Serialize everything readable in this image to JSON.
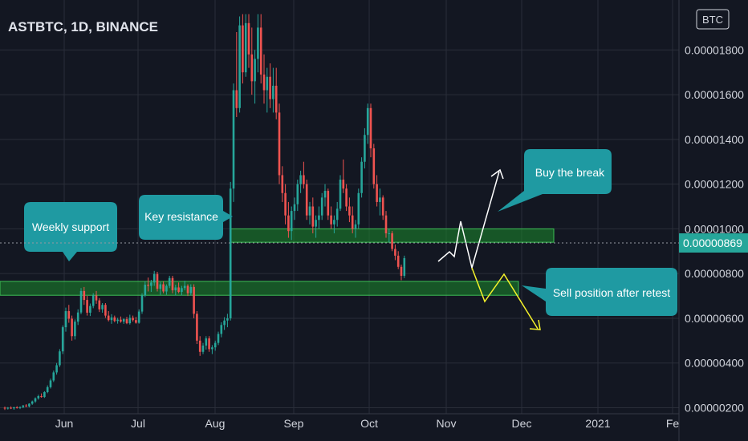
{
  "chart_data": {
    "type": "candlestick",
    "title": "ASTBTC, 1D, BINANCE",
    "currency_badge": "BTC",
    "y_ticks": [
      "0.00000200",
      "0.00000400",
      "0.00000600",
      "0.00000800",
      "0.00001000",
      "0.00001200",
      "0.00001400",
      "0.00001600",
      "0.00001800"
    ],
    "x_ticks": [
      "Jun",
      "Jul",
      "Aug",
      "Sep",
      "Oct",
      "Nov",
      "Dec",
      "2021",
      "Fe"
    ],
    "last_price": "0.00000869",
    "ylim": [
      1.6e-06,
      1.94e-05
    ],
    "grid": true,
    "colors": {
      "up": "#26a69a",
      "down": "#ef5350",
      "zone": "#1b8a2c",
      "callout": "#1f9aa2",
      "scenario_up": "#ffffff",
      "scenario_down": "#f5f22a"
    },
    "zones": [
      {
        "name": "weekly-support-zone",
        "y_low": 7.03e-06,
        "y_high": 7.65e-06
      },
      {
        "name": "key-resistance-zone",
        "y_low": 9.4e-06,
        "y_high": 1e-05
      }
    ],
    "callouts": [
      {
        "name": "weekly-support-callout",
        "text": "Weekly support"
      },
      {
        "name": "key-resistance-callout",
        "text": "Key resistance"
      },
      {
        "name": "buy-break-callout",
        "text": "Buy the break"
      },
      {
        "name": "sell-retest-callout",
        "text": "Sell position after retest"
      }
    ],
    "candles": [
      [
        2e-06,
        2.05e-06,
        1.9e-06,
        1.98e-06
      ],
      [
        1.98e-06,
        2.03e-06,
        1.92e-06,
        2e-06
      ],
      [
        2e-06,
        2.06e-06,
        1.94e-06,
        1.97e-06
      ],
      [
        1.97e-06,
        2.04e-06,
        1.91e-06,
        2.02e-06
      ],
      [
        2.02e-06,
        2.07e-06,
        1.96e-06,
        1.99e-06
      ],
      [
        1.99e-06,
        2.06e-06,
        1.94e-06,
        2.03e-06
      ],
      [
        2.03e-06,
        2.12e-06,
        1.98e-06,
        2.1e-06
      ],
      [
        2.1e-06,
        2.16e-06,
        2.03e-06,
        2.06e-06
      ],
      [
        2.06e-06,
        2.2e-06,
        2.02e-06,
        2.18e-06
      ],
      [
        2.18e-06,
        2.32e-06,
        2.13e-06,
        2.28e-06
      ],
      [
        2.28e-06,
        2.46e-06,
        2.22e-06,
        2.42e-06
      ],
      [
        2.42e-06,
        2.58e-06,
        2.36e-06,
        2.52e-06
      ],
      [
        2.52e-06,
        2.64e-06,
        2.45e-06,
        2.48e-06
      ],
      [
        2.48e-06,
        2.74e-06,
        2.44e-06,
        2.7e-06
      ],
      [
        2.7e-06,
        3e-06,
        2.65e-06,
        2.92e-06
      ],
      [
        2.92e-06,
        3.3e-06,
        2.86e-06,
        3.22e-06
      ],
      [
        3.22e-06,
        3.66e-06,
        3.15e-06,
        3.58e-06
      ],
      [
        3.58e-06,
        4e-06,
        3.48e-06,
        3.9e-06
      ],
      [
        3.9e-06,
        4.62e-06,
        3.82e-06,
        4.52e-06
      ],
      [
        4.52e-06,
        5.68e-06,
        4.4e-06,
        5.6e-06
      ],
      [
        5.6e-06,
        6.48e-06,
        5.4e-06,
        6.32e-06
      ],
      [
        6.32e-06,
        6.6e-06,
        5.8e-06,
        5.98e-06
      ],
      [
        5.98e-06,
        6.12e-06,
        5e-06,
        5.2e-06
      ],
      [
        5.2e-06,
        5.95e-06,
        5.05e-06,
        5.85e-06
      ],
      [
        5.85e-06,
        6.4e-06,
        5.7e-06,
        6.26e-06
      ],
      [
        6.26e-06,
        7.35e-06,
        6.18e-06,
        7.22e-06
      ],
      [
        7.22e-06,
        7.4e-06,
        6.6e-06,
        6.82e-06
      ],
      [
        6.82e-06,
        7e-06,
        6.12e-06,
        6.25e-06
      ],
      [
        6.25e-06,
        6.66e-06,
        6.1e-06,
        6.55e-06
      ],
      [
        6.55e-06,
        7.12e-06,
        6.45e-06,
        7.02e-06
      ],
      [
        7.02e-06,
        7.22e-06,
        6.65e-06,
        6.8e-06
      ],
      [
        6.8e-06,
        6.9e-06,
        6.28e-06,
        6.4e-06
      ],
      [
        6.4e-06,
        6.68e-06,
        6.25e-06,
        6.6e-06
      ],
      [
        6.6e-06,
        6.68e-06,
        6.02e-06,
        6.12e-06
      ],
      [
        6.12e-06,
        6.32e-06,
        5.86e-06,
        5.92e-06
      ],
      [
        5.92e-06,
        6.18e-06,
        5.75e-06,
        6.04e-06
      ],
      [
        6.04e-06,
        6.12e-06,
        5.82e-06,
        5.88e-06
      ],
      [
        5.88e-06,
        6.02e-06,
        5.76e-06,
        5.94e-06
      ],
      [
        5.94e-06,
        6.08e-06,
        5.8e-06,
        5.85e-06
      ],
      [
        5.85e-06,
        6e-06,
        5.75e-06,
        5.96e-06
      ],
      [
        5.96e-06,
        6.06e-06,
        5.74e-06,
        5.78e-06
      ],
      [
        5.78e-06,
        6.16e-06,
        5.72e-06,
        6.02e-06
      ],
      [
        6.02e-06,
        6.12e-06,
        5.85e-06,
        5.92e-06
      ],
      [
        5.92e-06,
        6.06e-06,
        5.76e-06,
        5.8e-06
      ],
      [
        5.8e-06,
        6.4e-06,
        5.76e-06,
        6.3e-06
      ],
      [
        6.3e-06,
        7.12e-06,
        6.2e-06,
        7.02e-06
      ],
      [
        7.02e-06,
        7.65e-06,
        6.95e-06,
        7.5e-06
      ],
      [
        7.5e-06,
        7.82e-06,
        7.2e-06,
        7.45e-06
      ],
      [
        7.45e-06,
        7.72e-06,
        7.18e-06,
        7.6e-06
      ],
      [
        7.6e-06,
        8.12e-06,
        7.45e-06,
        7.98e-06
      ],
      [
        7.98e-06,
        8.08e-06,
        7.2e-06,
        7.32e-06
      ],
      [
        7.32e-06,
        7.62e-06,
        7.05e-06,
        7.52e-06
      ],
      [
        7.52e-06,
        7.65e-06,
        7.12e-06,
        7.2e-06
      ],
      [
        7.2e-06,
        7.52e-06,
        7.05e-06,
        7.45e-06
      ],
      [
        7.45e-06,
        7.9e-06,
        7.35e-06,
        7.8e-06
      ],
      [
        7.8e-06,
        7.9e-06,
        7.12e-06,
        7.25e-06
      ],
      [
        7.25e-06,
        7.5e-06,
        7.02e-06,
        7.38e-06
      ],
      [
        7.38e-06,
        7.6e-06,
        7.12e-06,
        7.18e-06
      ],
      [
        7.18e-06,
        7.45e-06,
        7.02e-06,
        7.35e-06
      ],
      [
        7.35e-06,
        7.68e-06,
        7.25e-06,
        7.45e-06
      ],
      [
        7.45e-06,
        7.52e-06,
        7e-06,
        7.12e-06
      ],
      [
        7.12e-06,
        7.52e-06,
        7.02e-06,
        7.4e-06
      ],
      [
        7.4e-06,
        7.52e-06,
        6e-06,
        6.2e-06
      ],
      [
        6.2e-06,
        6.32e-06,
        4.85e-06,
        5e-06
      ],
      [
        5e-06,
        5.2e-06,
        4.32e-06,
        4.5e-06
      ],
      [
        4.5e-06,
        4.9e-06,
        4.4e-06,
        4.78e-06
      ],
      [
        4.78e-06,
        5.2e-06,
        4.6e-06,
        5.1e-06
      ],
      [
        5.1e-06,
        5.2e-06,
        4.5e-06,
        4.62e-06
      ],
      [
        4.62e-06,
        4.8e-06,
        4.4e-06,
        4.7e-06
      ],
      [
        4.7e-06,
        5e-06,
        4.55e-06,
        4.9e-06
      ],
      [
        4.9e-06,
        5.4e-06,
        4.8e-06,
        5.3e-06
      ],
      [
        5.3e-06,
        5.82e-06,
        5.15e-06,
        5.7e-06
      ],
      [
        5.7e-06,
        6.05e-06,
        5.48e-06,
        5.9e-06
      ],
      [
        5.9e-06,
        6.2e-06,
        5.6e-06,
        6e-06
      ],
      [
        6e-06,
        1.21e-05,
        5.9e-06,
        1.18e-05
      ],
      [
        1.18e-05,
        1.65e-05,
        1.12e-05,
        1.62e-05
      ],
      [
        1.62e-05,
        1.88e-05,
        1.5e-05,
        1.54e-05
      ],
      [
        1.54e-05,
        1.95e-05,
        1.52e-05,
        1.91e-05
      ],
      [
        1.91e-05,
        1.96e-05,
        1.65e-05,
        1.7e-05
      ],
      [
        1.7e-05,
        1.96e-05,
        1.68e-05,
        1.92e-05
      ],
      [
        1.92e-05,
        1.96e-05,
        1.72e-05,
        1.78e-05
      ],
      [
        1.78e-05,
        1.9e-05,
        1.6e-05,
        1.66e-05
      ],
      [
        1.66e-05,
        1.8e-05,
        1.56e-05,
        1.76e-05
      ],
      [
        1.76e-05,
        1.96e-05,
        1.7e-05,
        1.9e-05
      ],
      [
        1.9e-05,
        1.96e-05,
        1.65e-05,
        1.69e-05
      ],
      [
        1.69e-05,
        1.78e-05,
        1.56e-05,
        1.62e-05
      ],
      [
        1.62e-05,
        1.72e-05,
        1.52e-05,
        1.68e-05
      ],
      [
        1.68e-05,
        1.74e-05,
        1.54e-05,
        1.58e-05
      ],
      [
        1.58e-05,
        1.72e-05,
        1.52e-05,
        1.64e-05
      ],
      [
        1.64e-05,
        1.72e-05,
        1.49e-05,
        1.52e-05
      ],
      [
        1.52e-05,
        1.56e-05,
        1.2e-05,
        1.24e-05
      ],
      [
        1.24e-05,
        1.28e-05,
        1.12e-05,
        1.16e-05
      ],
      [
        1.16e-05,
        1.2e-05,
        1.02e-05,
        1.06e-05
      ],
      [
        1.06e-05,
        1.12e-05,
        9.6e-06,
        9.9e-06
      ],
      [
        9.9e-06,
        1.1e-05,
        9.5e-06,
        1.08e-05
      ],
      [
        1.08e-05,
        1.14e-05,
        1.04e-05,
        1.11e-05
      ],
      [
        1.11e-05,
        1.22e-05,
        1.08e-05,
        1.2e-05
      ],
      [
        1.2e-05,
        1.26e-05,
        1.16e-05,
        1.24e-05
      ],
      [
        1.24e-05,
        1.3e-05,
        1.18e-05,
        1.2e-05
      ],
      [
        1.2e-05,
        1.22e-05,
        1.04e-05,
        1.06e-05
      ],
      [
        1.06e-05,
        1.12e-05,
        1.02e-05,
        1.1e-05
      ],
      [
        1.1e-05,
        1.14e-05,
        9.8e-06,
        1.01e-05
      ],
      [
        1.01e-05,
        1.06e-05,
        9.6e-06,
        1.04e-05
      ],
      [
        1.04e-05,
        1.1e-05,
        1e-05,
        1.06e-05
      ],
      [
        1.06e-05,
        1.16e-05,
        1.04e-05,
        1.14e-05
      ],
      [
        1.14e-05,
        1.2e-05,
        1.1e-05,
        1.17e-05
      ],
      [
        1.17e-05,
        1.18e-05,
        1.04e-05,
        1.06e-05
      ],
      [
        1.06e-05,
        1.1e-05,
        1e-05,
        1.02e-05
      ],
      [
        1.02e-05,
        1.06e-05,
        9.8e-06,
        1.04e-05
      ],
      [
        1.04e-05,
        1.12e-05,
        1.01e-05,
        1.09e-05
      ],
      [
        1.09e-05,
        1.24e-05,
        1.08e-05,
        1.22e-05
      ],
      [
        1.22e-05,
        1.31e-05,
        1.16e-05,
        1.18e-05
      ],
      [
        1.18e-05,
        1.2e-05,
        1.08e-05,
        1.1e-05
      ],
      [
        1.1e-05,
        1.14e-05,
        1.03e-05,
        1.06e-05
      ],
      [
        1.06e-05,
        1.1e-05,
        9.8e-06,
        1e-05
      ],
      [
        1e-05,
        1.04e-05,
        9.6e-06,
        1.02e-05
      ],
      [
        1.02e-05,
        1.18e-05,
        1e-05,
        1.16e-05
      ],
      [
        1.16e-05,
        1.32e-05,
        1.14e-05,
        1.3e-05
      ],
      [
        1.3e-05,
        1.45e-05,
        1.27e-05,
        1.42e-05
      ],
      [
        1.42e-05,
        1.56e-05,
        1.38e-05,
        1.54e-05
      ],
      [
        1.54e-05,
        1.56e-05,
        1.32e-05,
        1.36e-05
      ],
      [
        1.36e-05,
        1.38e-05,
        1.18e-05,
        1.2e-05
      ],
      [
        1.2e-05,
        1.24e-05,
        1.1e-05,
        1.12e-05
      ],
      [
        1.12e-05,
        1.18e-05,
        1.06e-05,
        1.14e-05
      ],
      [
        1.14e-05,
        1.15e-05,
        1.04e-05,
        1.06e-05
      ],
      [
        1.06e-05,
        1.08e-05,
        9.6e-06,
        9.8e-06
      ],
      [
        9.8e-06,
        1e-05,
        9.4e-06,
        9.8e-06
      ],
      [
        9.8e-06,
        9.9e-06,
        9e-06,
        9.1e-06
      ],
      [
        9.1e-06,
        9.3e-06,
        8.6e-06,
        8.8e-06
      ],
      [
        8.8e-06,
        9e-06,
        8.2e-06,
        8.3e-06
      ],
      [
        8.3e-06,
        8.4e-06,
        7.7e-06,
        7.9e-06
      ],
      [
        7.9e-06,
        8.8e-06,
        7.8e-06,
        8.69e-06
      ]
    ]
  }
}
